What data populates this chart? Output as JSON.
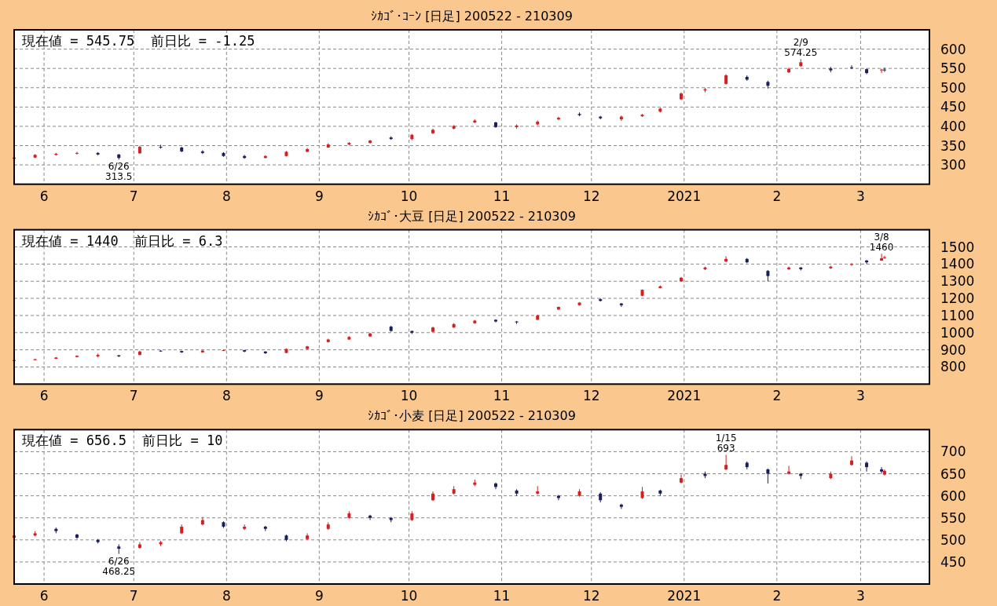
{
  "chart_data": [
    {
      "type": "candlestick",
      "title": "ｼｶｺﾞ･ｺｰﾝ [日足] 200522 - 210309",
      "annotations": [
        "現在値 = 545.75  前日比 = -1.25",
        {
          "text": "6/26\n313.5",
          "x": "2020-06-26",
          "y": 313.5
        },
        {
          "text": "2/9\n574.25",
          "x": "2021-02-09",
          "y": 574.25
        }
      ],
      "x": [
        "2020-05-22",
        "2020-05-29",
        "2020-06-05",
        "2020-06-12",
        "2020-06-19",
        "2020-06-26",
        "2020-07-03",
        "2020-07-10",
        "2020-07-17",
        "2020-07-24",
        "2020-07-31",
        "2020-08-07",
        "2020-08-14",
        "2020-08-21",
        "2020-08-28",
        "2020-09-04",
        "2020-09-11",
        "2020-09-18",
        "2020-09-25",
        "2020-10-02",
        "2020-10-09",
        "2020-10-16",
        "2020-10-23",
        "2020-10-30",
        "2020-11-06",
        "2020-11-13",
        "2020-11-20",
        "2020-11-27",
        "2020-12-04",
        "2020-12-11",
        "2020-12-18",
        "2020-12-24",
        "2020-12-31",
        "2021-01-08",
        "2021-01-15",
        "2021-01-22",
        "2021-01-29",
        "2021-02-05",
        "2021-02-09",
        "2021-02-19",
        "2021-02-26",
        "2021-03-03",
        "2021-03-08",
        "2021-03-09"
      ],
      "ohlc": [
        [
          316,
          321,
          314,
          319
        ],
        [
          319,
          328,
          318,
          326
        ],
        [
          326,
          331,
          324,
          329
        ],
        [
          329,
          334,
          327,
          331
        ],
        [
          331,
          333,
          325,
          327
        ],
        [
          327,
          328,
          313.5,
          318
        ],
        [
          330,
          350,
          329,
          347
        ],
        [
          347,
          352,
          342,
          345
        ],
        [
          345,
          347,
          333,
          335
        ],
        [
          335,
          338,
          328,
          331
        ],
        [
          331,
          333,
          321,
          323
        ],
        [
          323,
          326,
          316,
          318
        ],
        [
          318,
          325,
          317,
          323
        ],
        [
          323,
          336,
          322,
          334
        ],
        [
          334,
          344,
          333,
          341
        ],
        [
          345,
          356,
          344,
          353
        ],
        [
          353,
          359,
          351,
          357
        ],
        [
          357,
          365,
          355,
          363
        ],
        [
          371,
          374,
          365,
          367
        ],
        [
          367,
          380,
          364,
          378
        ],
        [
          382,
          394,
          380,
          391
        ],
        [
          394,
          403,
          392,
          401
        ],
        [
          410,
          418,
          408,
          415
        ],
        [
          410,
          412,
          396,
          398
        ],
        [
          398,
          405,
          394,
          402
        ],
        [
          405,
          415,
          403,
          412
        ],
        [
          418,
          425,
          416,
          422
        ],
        [
          432,
          436,
          426,
          429
        ],
        [
          425,
          427,
          418,
          421
        ],
        [
          418,
          428,
          414,
          425
        ],
        [
          426,
          432,
          424,
          430
        ],
        [
          438,
          448,
          436,
          446
        ],
        [
          470,
          488,
          468,
          485
        ],
        [
          493,
          500,
          488,
          496
        ],
        [
          510,
          535,
          508,
          532
        ],
        [
          528,
          532,
          518,
          521
        ],
        [
          515,
          518,
          498,
          505
        ],
        [
          540,
          552,
          538,
          549
        ],
        [
          556,
          574.25,
          554,
          566
        ],
        [
          550,
          554,
          540,
          545
        ],
        [
          553,
          558,
          548,
          551
        ],
        [
          548,
          550,
          535,
          538
        ],
        [
          545,
          549,
          538,
          547
        ],
        [
          547,
          552,
          541,
          545.75
        ]
      ],
      "colors": [
        "#d42020",
        "#d42020",
        "#d42020",
        "#d42020",
        "#1a1f5c",
        "#1a1f5c",
        "#d42020",
        "#1a1f5c",
        "#1a1f5c",
        "#1a1f5c",
        "#1a1f5c",
        "#1a1f5c",
        "#d42020",
        "#d42020",
        "#d42020",
        "#d42020",
        "#d42020",
        "#d42020",
        "#1a1f5c",
        "#d42020",
        "#d42020",
        "#d42020",
        "#d42020",
        "#1a1f5c",
        "#d42020",
        "#d42020",
        "#d42020",
        "#1a1f5c",
        "#1a1f5c",
        "#d42020",
        "#d42020",
        "#d42020",
        "#d42020",
        "#d42020",
        "#d42020",
        "#1a1f5c",
        "#1a1f5c",
        "#d42020",
        "#d42020",
        "#1a1f5c",
        "#1a1f5c",
        "#1a1f5c",
        "#d42020",
        "#1a1f5c"
      ],
      "xlim": [
        "2020-05-22",
        "2021-03-24"
      ],
      "xticks": [
        {
          "value": "2020-06-01",
          "label": "6"
        },
        {
          "value": "2020-07-01",
          "label": "7"
        },
        {
          "value": "2020-08-01",
          "label": "8"
        },
        {
          "value": "2020-09-01",
          "label": "9"
        },
        {
          "value": "2020-10-01",
          "label": "10"
        },
        {
          "value": "2020-11-01",
          "label": "11"
        },
        {
          "value": "2020-12-01",
          "label": "12"
        },
        {
          "value": "2021-01-01",
          "label": "2021"
        },
        {
          "value": "2021-02-01",
          "label": "2"
        },
        {
          "value": "2021-03-01",
          "label": "3"
        }
      ],
      "ylim": [
        250,
        650
      ],
      "yticks": [
        300,
        350,
        400,
        450,
        500,
        550,
        600
      ],
      "grid": true
    },
    {
      "type": "candlestick",
      "title": "ｼｶｺﾞ･大豆 [日足] 200522 - 210309",
      "annotations": [
        "現在値 = 1440  前日比 = 6.3",
        {
          "text": "3/8\n1460",
          "x": "2021-03-08",
          "y": 1460
        }
      ],
      "x": [
        "2020-05-22",
        "2020-05-29",
        "2020-06-05",
        "2020-06-12",
        "2020-06-19",
        "2020-06-26",
        "2020-07-03",
        "2020-07-10",
        "2020-07-17",
        "2020-07-24",
        "2020-07-31",
        "2020-08-07",
        "2020-08-14",
        "2020-08-21",
        "2020-08-28",
        "2020-09-04",
        "2020-09-11",
        "2020-09-18",
        "2020-09-25",
        "2020-10-02",
        "2020-10-09",
        "2020-10-16",
        "2020-10-23",
        "2020-10-30",
        "2020-11-06",
        "2020-11-13",
        "2020-11-20",
        "2020-11-27",
        "2020-12-04",
        "2020-12-11",
        "2020-12-18",
        "2020-12-24",
        "2020-12-31",
        "2021-01-08",
        "2021-01-15",
        "2021-01-22",
        "2021-01-29",
        "2021-02-05",
        "2021-02-09",
        "2021-02-19",
        "2021-02-26",
        "2021-03-03",
        "2021-03-08",
        "2021-03-09"
      ],
      "ohlc": [
        [
          835,
          842,
          832,
          840
        ],
        [
          840,
          848,
          838,
          845
        ],
        [
          848,
          858,
          846,
          855
        ],
        [
          858,
          868,
          856,
          865
        ],
        [
          862,
          878,
          856,
          870
        ],
        [
          868,
          870,
          858,
          862
        ],
        [
          870,
          895,
          868,
          890
        ],
        [
          895,
          898,
          889,
          893
        ],
        [
          893,
          895,
          882,
          885
        ],
        [
          885,
          898,
          884,
          895
        ],
        [
          895,
          902,
          893,
          898
        ],
        [
          898,
          900,
          886,
          890
        ],
        [
          890,
          892,
          876,
          880
        ],
        [
          882,
          908,
          880,
          905
        ],
        [
          905,
          923,
          903,
          920
        ],
        [
          945,
          965,
          943,
          960
        ],
        [
          960,
          980,
          958,
          975
        ],
        [
          978,
          1000,
          976,
          995
        ],
        [
          1035,
          1040,
          1005,
          1010
        ],
        [
          1010,
          1012,
          992,
          1000
        ],
        [
          1005,
          1035,
          1003,
          1030
        ],
        [
          1030,
          1055,
          1028,
          1050
        ],
        [
          1055,
          1074,
          1052,
          1070
        ],
        [
          1075,
          1078,
          1060,
          1065
        ],
        [
          1065,
          1068,
          1050,
          1060
        ],
        [
          1075,
          1105,
          1073,
          1100
        ],
        [
          1135,
          1152,
          1132,
          1150
        ],
        [
          1160,
          1178,
          1158,
          1175
        ],
        [
          1195,
          1200,
          1182,
          1185
        ],
        [
          1170,
          1172,
          1150,
          1160
        ],
        [
          1215,
          1252,
          1212,
          1250
        ],
        [
          1260,
          1275,
          1258,
          1270
        ],
        [
          1300,
          1325,
          1298,
          1320
        ],
        [
          1370,
          1385,
          1365,
          1380
        ],
        [
          1415,
          1445,
          1410,
          1430
        ],
        [
          1430,
          1435,
          1405,
          1410
        ],
        [
          1360,
          1365,
          1300,
          1330
        ],
        [
          1370,
          1385,
          1365,
          1380
        ],
        [
          1380,
          1382,
          1362,
          1370
        ],
        [
          1375,
          1390,
          1372,
          1385
        ],
        [
          1395,
          1405,
          1390,
          1400
        ],
        [
          1420,
          1425,
          1400,
          1410
        ],
        [
          1420,
          1460,
          1418,
          1433.7
        ],
        [
          1435,
          1448,
          1430,
          1440
        ]
      ],
      "colors": [
        "#d42020",
        "#d42020",
        "#d42020",
        "#d42020",
        "#d42020",
        "#1a1f5c",
        "#d42020",
        "#1a1f5c",
        "#1a1f5c",
        "#d42020",
        "#d42020",
        "#1a1f5c",
        "#1a1f5c",
        "#d42020",
        "#d42020",
        "#d42020",
        "#d42020",
        "#d42020",
        "#1a1f5c",
        "#1a1f5c",
        "#d42020",
        "#d42020",
        "#d42020",
        "#1a1f5c",
        "#1a1f5c",
        "#d42020",
        "#d42020",
        "#d42020",
        "#1a1f5c",
        "#1a1f5c",
        "#d42020",
        "#d42020",
        "#d42020",
        "#d42020",
        "#d42020",
        "#1a1f5c",
        "#1a1f5c",
        "#d42020",
        "#1a1f5c",
        "#d42020",
        "#d42020",
        "#1a1f5c",
        "#d42020",
        "#d42020"
      ],
      "xlim": [
        "2020-05-22",
        "2021-03-24"
      ],
      "xticks": [
        {
          "value": "2020-06-01",
          "label": "6"
        },
        {
          "value": "2020-07-01",
          "label": "7"
        },
        {
          "value": "2020-08-01",
          "label": "8"
        },
        {
          "value": "2020-09-01",
          "label": "9"
        },
        {
          "value": "2020-10-01",
          "label": "10"
        },
        {
          "value": "2020-11-01",
          "label": "11"
        },
        {
          "value": "2020-12-01",
          "label": "12"
        },
        {
          "value": "2021-01-01",
          "label": "2021"
        },
        {
          "value": "2021-02-01",
          "label": "2"
        },
        {
          "value": "2021-03-01",
          "label": "3"
        }
      ],
      "ylim": [
        700,
        1600
      ],
      "yticks": [
        800,
        900,
        1000,
        1100,
        1200,
        1300,
        1400,
        1500
      ],
      "grid": true
    },
    {
      "type": "candlestick",
      "title": "ｼｶｺﾞ･小麦 [日足] 200522 - 210309",
      "annotations": [
        "現在値 = 656.5  前日比 = 10",
        {
          "text": "6/26\n468.25",
          "x": "2020-06-26",
          "y": 468.25
        },
        {
          "text": "1/15\n693",
          "x": "2021-01-15",
          "y": 693
        }
      ],
      "x": [
        "2020-05-22",
        "2020-05-29",
        "2020-06-05",
        "2020-06-12",
        "2020-06-19",
        "2020-06-26",
        "2020-07-03",
        "2020-07-10",
        "2020-07-17",
        "2020-07-24",
        "2020-07-31",
        "2020-08-07",
        "2020-08-14",
        "2020-08-21",
        "2020-08-28",
        "2020-09-04",
        "2020-09-11",
        "2020-09-18",
        "2020-09-25",
        "2020-10-02",
        "2020-10-09",
        "2020-10-16",
        "2020-10-23",
        "2020-10-30",
        "2020-11-06",
        "2020-11-13",
        "2020-11-20",
        "2020-11-27",
        "2020-12-04",
        "2020-12-11",
        "2020-12-18",
        "2020-12-24",
        "2020-12-31",
        "2021-01-08",
        "2021-01-15",
        "2021-01-22",
        "2021-01-29",
        "2021-02-05",
        "2021-02-09",
        "2021-02-19",
        "2021-02-26",
        "2021-03-03",
        "2021-03-08",
        "2021-03-09"
      ],
      "ohlc": [
        [
          505,
          513,
          503,
          510
        ],
        [
          510,
          520,
          508,
          515
        ],
        [
          525,
          528,
          515,
          520
        ],
        [
          512,
          514,
          502,
          505
        ],
        [
          500,
          502,
          492,
          495
        ],
        [
          485,
          490,
          468.25,
          480
        ],
        [
          482,
          495,
          480,
          490
        ],
        [
          490,
          498,
          486,
          495
        ],
        [
          515,
          535,
          513,
          530
        ],
        [
          535,
          552,
          533,
          545
        ],
        [
          540,
          542,
          527,
          530
        ],
        [
          525,
          535,
          522,
          530
        ],
        [
          530,
          532,
          520,
          525
        ],
        [
          510,
          512,
          497,
          500
        ],
        [
          502,
          515,
          500,
          510
        ],
        [
          525,
          540,
          523,
          535
        ],
        [
          550,
          565,
          548,
          560
        ],
        [
          555,
          557,
          545,
          550
        ],
        [
          550,
          552,
          540,
          545
        ],
        [
          545,
          565,
          543,
          560
        ],
        [
          590,
          610,
          588,
          605
        ],
        [
          605,
          622,
          603,
          615
        ],
        [
          625,
          637,
          622,
          630
        ],
        [
          628,
          630,
          615,
          620
        ],
        [
          612,
          615,
          600,
          605
        ],
        [
          605,
          622,
          603,
          610
        ],
        [
          600,
          602,
          590,
          595
        ],
        [
          600,
          615,
          598,
          610
        ],
        [
          605,
          608,
          585,
          590
        ],
        [
          580,
          582,
          570,
          575
        ],
        [
          595,
          620,
          593,
          610
        ],
        [
          612,
          614,
          600,
          605
        ],
        [
          630,
          648,
          628,
          640
        ],
        [
          650,
          655,
          640,
          645
        ],
        [
          660,
          693,
          658,
          670
        ],
        [
          675,
          678,
          660,
          665
        ],
        [
          660,
          662,
          628,
          650
        ],
        [
          650,
          668,
          648,
          655
        ],
        [
          650,
          652,
          638,
          645
        ],
        [
          640,
          655,
          638,
          650
        ],
        [
          670,
          690,
          668,
          680
        ],
        [
          675,
          678,
          655,
          665
        ],
        [
          660,
          665,
          650,
          655
        ],
        [
          648,
          660,
          646,
          656.5
        ]
      ],
      "colors": [
        "#d42020",
        "#d42020",
        "#1a1f5c",
        "#1a1f5c",
        "#1a1f5c",
        "#1a1f5c",
        "#d42020",
        "#d42020",
        "#d42020",
        "#d42020",
        "#1a1f5c",
        "#d42020",
        "#1a1f5c",
        "#1a1f5c",
        "#d42020",
        "#d42020",
        "#d42020",
        "#1a1f5c",
        "#1a1f5c",
        "#d42020",
        "#d42020",
        "#d42020",
        "#d42020",
        "#1a1f5c",
        "#1a1f5c",
        "#d42020",
        "#1a1f5c",
        "#d42020",
        "#1a1f5c",
        "#1a1f5c",
        "#d42020",
        "#1a1f5c",
        "#d42020",
        "#1a1f5c",
        "#d42020",
        "#1a1f5c",
        "#1a1f5c",
        "#d42020",
        "#1a1f5c",
        "#d42020",
        "#d42020",
        "#1a1f5c",
        "#1a1f5c",
        "#d42020"
      ],
      "xlim": [
        "2020-05-22",
        "2021-03-24"
      ],
      "xticks": [
        {
          "value": "2020-06-01",
          "label": "6"
        },
        {
          "value": "2020-07-01",
          "label": "7"
        },
        {
          "value": "2020-08-01",
          "label": "8"
        },
        {
          "value": "2020-09-01",
          "label": "9"
        },
        {
          "value": "2020-10-01",
          "label": "10"
        },
        {
          "value": "2020-11-01",
          "label": "11"
        },
        {
          "value": "2020-12-01",
          "label": "12"
        },
        {
          "value": "2021-01-01",
          "label": "2021"
        },
        {
          "value": "2021-02-01",
          "label": "2"
        },
        {
          "value": "2021-03-01",
          "label": "3"
        }
      ],
      "ylim": [
        400,
        750
      ],
      "yticks": [
        450,
        500,
        550,
        600,
        650,
        700
      ],
      "grid": true
    }
  ]
}
